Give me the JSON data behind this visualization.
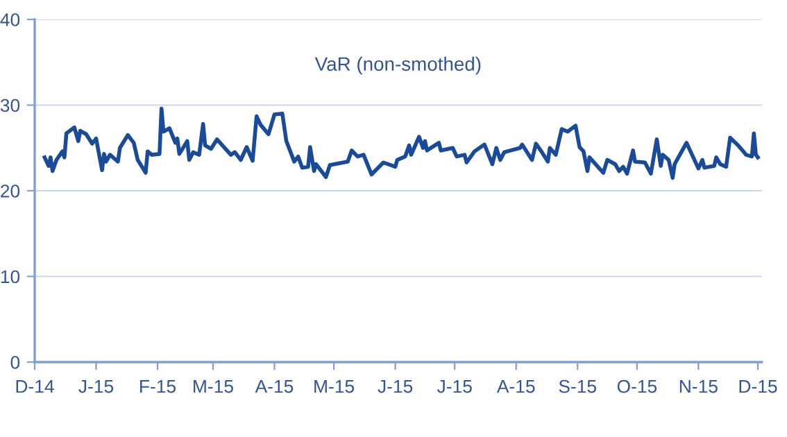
{
  "chart_data": {
    "type": "line",
    "title": "VaR (non-smothed)",
    "color": "#1a4b9b",
    "grid": "y",
    "marker": "none",
    "line_style": "solid",
    "x": [
      "2014-12-06",
      "2014-12-08",
      "2014-12-09",
      "2014-12-10",
      "2014-12-12",
      "2014-12-15",
      "2014-12-16",
      "2014-12-17",
      "2014-12-21",
      "2014-12-23",
      "2014-12-24",
      "2014-12-27",
      "2014-12-30",
      "2015-01-01",
      "2015-01-04",
      "2015-01-05",
      "2015-01-06",
      "2015-01-08",
      "2015-01-12",
      "2015-01-13",
      "2015-01-17",
      "2015-01-20",
      "2015-01-22",
      "2015-01-26",
      "2015-01-27",
      "2015-01-29",
      "2015-02-02",
      "2015-02-03",
      "2015-02-04",
      "2015-02-07",
      "2015-02-10",
      "2015-02-11",
      "2015-02-12",
      "2015-02-16",
      "2015-02-17",
      "2015-02-19",
      "2015-02-22",
      "2015-02-24",
      "2015-02-25",
      "2015-02-28",
      "2015-03-03",
      "2015-03-10",
      "2015-03-12",
      "2015-03-15",
      "2015-03-18",
      "2015-03-21",
      "2015-03-23",
      "2015-03-25",
      "2015-03-29",
      "2015-04-01",
      "2015-04-05",
      "2015-04-07",
      "2015-04-11",
      "2015-04-13",
      "2015-04-15",
      "2015-04-18",
      "2015-04-19",
      "2015-04-21",
      "2015-04-22",
      "2015-04-27",
      "2015-04-29",
      "2015-05-08",
      "2015-05-10",
      "2015-05-13",
      "2015-05-16",
      "2015-05-20",
      "2015-05-26",
      "2015-06-01",
      "2015-06-02",
      "2015-06-06",
      "2015-06-08",
      "2015-06-09",
      "2015-06-13",
      "2015-06-15",
      "2015-06-16",
      "2015-06-17",
      "2015-06-23",
      "2015-06-24",
      "2015-06-30",
      "2015-07-02",
      "2015-07-06",
      "2015-07-07",
      "2015-07-11",
      "2015-07-16",
      "2015-07-20",
      "2015-07-22",
      "2015-07-24",
      "2015-07-26",
      "2015-08-03",
      "2015-08-04",
      "2015-08-09",
      "2015-08-11",
      "2015-08-14",
      "2015-08-17",
      "2015-08-18",
      "2015-08-21",
      "2015-08-24",
      "2015-08-27",
      "2015-08-31",
      "2015-09-02",
      "2015-09-04",
      "2015-09-06",
      "2015-09-07",
      "2015-09-14",
      "2015-09-16",
      "2015-09-20",
      "2015-09-22",
      "2015-09-24",
      "2015-09-26",
      "2015-09-29",
      "2015-09-30",
      "2015-10-05",
      "2015-10-08",
      "2015-10-11",
      "2015-10-13",
      "2015-10-14",
      "2015-10-17",
      "2015-10-19",
      "2015-10-20",
      "2015-10-26",
      "2015-11-01",
      "2015-11-03",
      "2015-11-04",
      "2015-11-09",
      "2015-11-10",
      "2015-11-12",
      "2015-11-15",
      "2015-11-17",
      "2015-11-21",
      "2015-11-24",
      "2015-11-25",
      "2015-11-28",
      "2015-11-29",
      "2015-11-30",
      "2015-12-01"
    ],
    "values": [
      23.9,
      22.9,
      23.9,
      22.3,
      23.6,
      24.6,
      23.9,
      26.7,
      27.4,
      25.8,
      27.0,
      26.6,
      25.5,
      26.1,
      22.4,
      24.3,
      23.4,
      24.2,
      23.4,
      25.0,
      26.5,
      25.6,
      23.6,
      22.1,
      24.6,
      24.2,
      24.3,
      29.6,
      26.9,
      27.3,
      25.6,
      26.1,
      24.3,
      25.8,
      23.6,
      24.5,
      24.2,
      27.8,
      25.3,
      24.9,
      26.0,
      24.2,
      24.5,
      23.6,
      25.1,
      23.5,
      28.7,
      27.7,
      26.6,
      28.9,
      29.0,
      25.8,
      23.4,
      24.0,
      22.7,
      22.8,
      25.1,
      22.3,
      23.1,
      21.6,
      23.0,
      23.4,
      24.7,
      24.0,
      24.2,
      21.9,
      23.3,
      22.8,
      23.6,
      24.0,
      25.3,
      24.2,
      26.3,
      25.0,
      25.8,
      24.7,
      25.6,
      24.7,
      25.0,
      24.0,
      24.2,
      23.3,
      24.6,
      25.4,
      23.1,
      25.0,
      23.6,
      24.5,
      25.0,
      25.4,
      23.6,
      25.5,
      24.5,
      23.4,
      25.0,
      24.2,
      27.2,
      26.9,
      27.6,
      25.1,
      24.6,
      22.3,
      23.9,
      22.1,
      23.6,
      23.1,
      22.3,
      22.8,
      22.0,
      24.7,
      23.4,
      23.3,
      22.0,
      26.0,
      22.9,
      24.2,
      23.6,
      21.5,
      23.1,
      25.6,
      22.6,
      23.6,
      22.7,
      22.9,
      23.9,
      23.1,
      22.8,
      26.2,
      25.3,
      24.5,
      24.2,
      24.0,
      26.7,
      24.2,
      23.9
    ],
    "xlim": [
      "2014-12-01",
      "2015-12-03"
    ],
    "xticks": [
      {
        "value": "2014-12-01",
        "label": "D-14"
      },
      {
        "value": "2015-01-01",
        "label": "J-15"
      },
      {
        "value": "2015-02-01",
        "label": "F-15"
      },
      {
        "value": "2015-03-01",
        "label": "M-15"
      },
      {
        "value": "2015-04-01",
        "label": "A-15"
      },
      {
        "value": "2015-05-01",
        "label": "M-15"
      },
      {
        "value": "2015-06-01",
        "label": "J-15"
      },
      {
        "value": "2015-07-01",
        "label": "J-15"
      },
      {
        "value": "2015-08-01",
        "label": "A-15"
      },
      {
        "value": "2015-09-01",
        "label": "S-15"
      },
      {
        "value": "2015-10-01",
        "label": "O-15"
      },
      {
        "value": "2015-11-01",
        "label": "N-15"
      },
      {
        "value": "2015-12-01",
        "label": "D-15"
      }
    ],
    "ylim": [
      0,
      40
    ],
    "yticks": [
      0,
      10,
      20,
      30,
      40
    ]
  }
}
